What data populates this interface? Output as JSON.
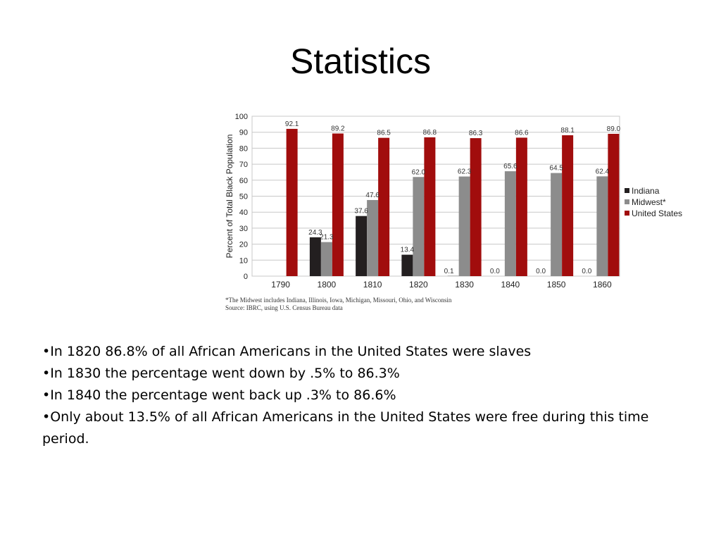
{
  "slide": {
    "title": "Statistics"
  },
  "bullets": [
    "•In 1820 86.8% of all African Americans in the United States were slaves",
    "•In 1830 the percentage went down by .5% to 86.3%",
    "•In 1840 the percentage went back up .3% to 86.6%",
    "•Only about 13.5% of all African Americans in the United States were free during this time period."
  ],
  "chart_data": {
    "type": "bar",
    "title": "",
    "xlabel": "",
    "ylabel": "Percent of Total Black Population",
    "ylim": [
      0,
      100
    ],
    "yticks": [
      0,
      10,
      20,
      30,
      40,
      50,
      60,
      70,
      80,
      90,
      100
    ],
    "grid": true,
    "legend_position": "right",
    "categories": [
      "1790",
      "1800",
      "1810",
      "1820",
      "1830",
      "1840",
      "1850",
      "1860"
    ],
    "series": [
      {
        "name": "Indiana",
        "color": "#231f20",
        "values": [
          null,
          24.3,
          37.6,
          13.4,
          0.1,
          0.0,
          0.0,
          0.0
        ],
        "labels": [
          "",
          "24.3",
          "37.6",
          "13.4",
          "0.1",
          "0.0",
          "0.0",
          "0.0"
        ]
      },
      {
        "name": "Midwest*",
        "color": "#8c8c8c",
        "values": [
          null,
          21.3,
          47.6,
          62.0,
          62.3,
          65.6,
          64.5,
          62.4
        ],
        "labels": [
          "",
          "21.3",
          "47.6",
          "62.0",
          "62.3",
          "65.6",
          "64.5",
          "62.4"
        ]
      },
      {
        "name": "United States",
        "color": "#a10d0d",
        "values": [
          92.1,
          89.2,
          86.5,
          86.8,
          86.3,
          86.6,
          88.1,
          89.0
        ],
        "labels": [
          "92.1",
          "89.2",
          "86.5",
          "86.8",
          "86.3",
          "86.6",
          "88.1",
          "89.0"
        ]
      }
    ],
    "footnotes": [
      "*The Midwest includes Indiana, Illinois, Iowa, Michigan, Missouri, Ohio, and Wisconsin",
      "Source: IBRC, using U.S. Census Bureau data"
    ]
  }
}
